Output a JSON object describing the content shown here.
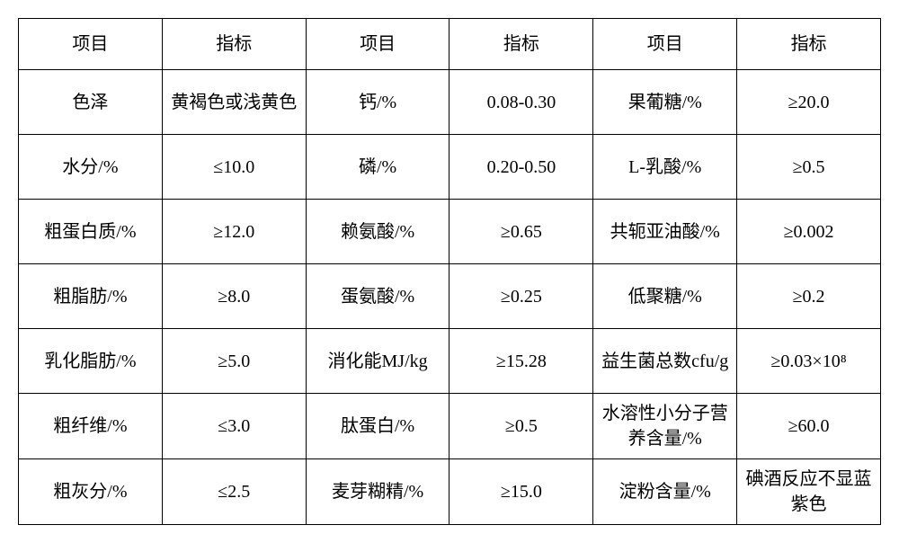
{
  "table": {
    "columns": [
      {
        "width": "16.6%"
      },
      {
        "width": "16.6%"
      },
      {
        "width": "16.6%"
      },
      {
        "width": "16.6%"
      },
      {
        "width": "16.6%"
      },
      {
        "width": "16.6%"
      }
    ],
    "border_color": "#000000",
    "background_color": "#ffffff",
    "font_size": 20,
    "rows": [
      [
        "项目",
        "指标",
        "项目",
        "指标",
        "项目",
        "指标"
      ],
      [
        "色泽",
        "黄褐色或浅黄色",
        "钙/%",
        "0.08-0.30",
        "果葡糖/%",
        "≥20.0"
      ],
      [
        "水分/%",
        "≤10.0",
        "磷/%",
        "0.20-0.50",
        "L-乳酸/%",
        "≥0.5"
      ],
      [
        "粗蛋白质/%",
        "≥12.0",
        "赖氨酸/%",
        "≥0.65",
        "共轭亚油酸/%",
        "≥0.002"
      ],
      [
        "粗脂肪/%",
        "≥8.0",
        "蛋氨酸/%",
        "≥0.25",
        "低聚糖/%",
        "≥0.2"
      ],
      [
        "乳化脂肪/%",
        "≥5.0",
        "消化能MJ/kg",
        "≥15.28",
        "益生菌总数cfu/g",
        "≥0.03×10⁸"
      ],
      [
        "粗纤维/%",
        "≤3.0",
        "肽蛋白/%",
        "≥0.5",
        "水溶性小分子营养含量/%",
        "≥60.0"
      ],
      [
        "粗灰分/%",
        "≤2.5",
        "麦芽糊精/%",
        "≥15.0",
        "淀粉含量/%",
        "碘酒反应不显蓝紫色"
      ]
    ]
  }
}
